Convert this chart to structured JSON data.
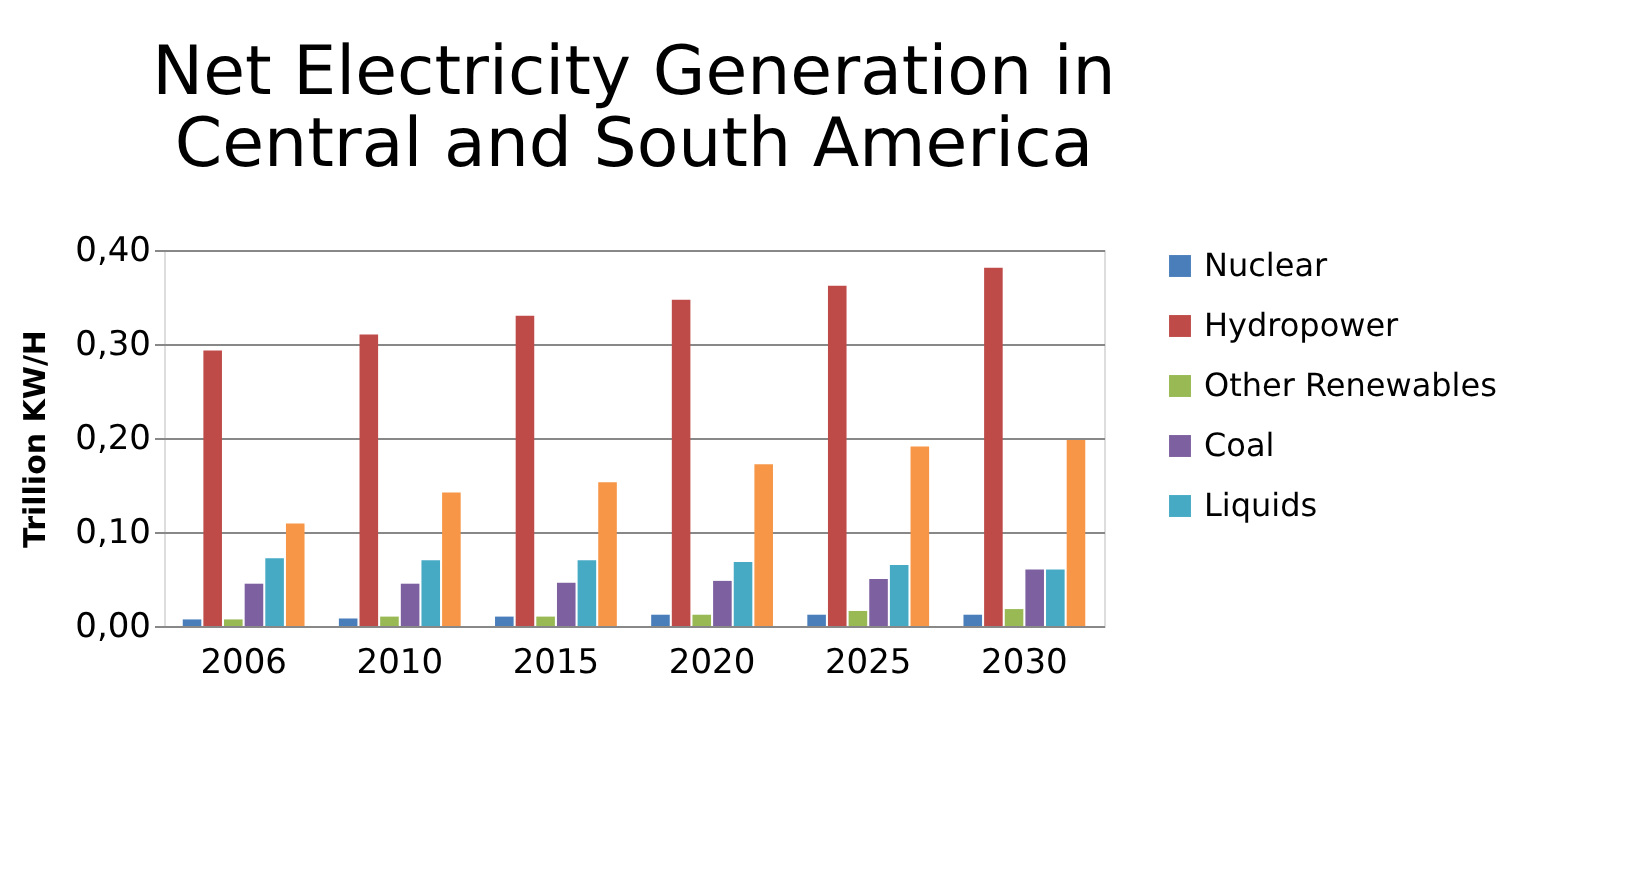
{
  "chart_data": {
    "type": "bar",
    "title": [
      "Net Electricity Generation in",
      "Central and South America"
    ],
    "ylabel": "Trillion KW/H",
    "categories": [
      "2006",
      "2010",
      "2015",
      "2020",
      "2025",
      "2030"
    ],
    "series": [
      {
        "name": "Nuclear",
        "color": "#4a7ebb",
        "values": [
          0.007,
          0.008,
          0.01,
          0.012,
          0.012,
          0.012
        ]
      },
      {
        "name": "Hydropower",
        "color": "#be4b48",
        "values": [
          0.293,
          0.31,
          0.33,
          0.347,
          0.362,
          0.381
        ]
      },
      {
        "name": "Other Renewables",
        "color": "#98b954",
        "values": [
          0.007,
          0.01,
          0.01,
          0.012,
          0.016,
          0.018
        ]
      },
      {
        "name": "Coal",
        "color": "#7d60a0",
        "values": [
          0.045,
          0.045,
          0.046,
          0.048,
          0.05,
          0.06
        ]
      },
      {
        "name": "Liquids",
        "color": "#46aac5",
        "values": [
          0.072,
          0.07,
          0.07,
          0.068,
          0.065,
          0.06
        ]
      },
      {
        "color": "#f79646",
        "values": [
          0.109,
          0.142,
          0.153,
          0.172,
          0.191,
          0.198
        ]
      }
    ],
    "ylim": [
      0,
      0.4
    ],
    "yticks": [
      {
        "value": 0,
        "label": "0,00"
      },
      {
        "value": 0.1,
        "label": "0,10"
      },
      {
        "value": 0.2,
        "label": "0,20"
      },
      {
        "value": 0.3,
        "label": "0,30"
      },
      {
        "value": 0.4,
        "label": "0,40"
      }
    ],
    "grid": "y",
    "legend": "right"
  }
}
